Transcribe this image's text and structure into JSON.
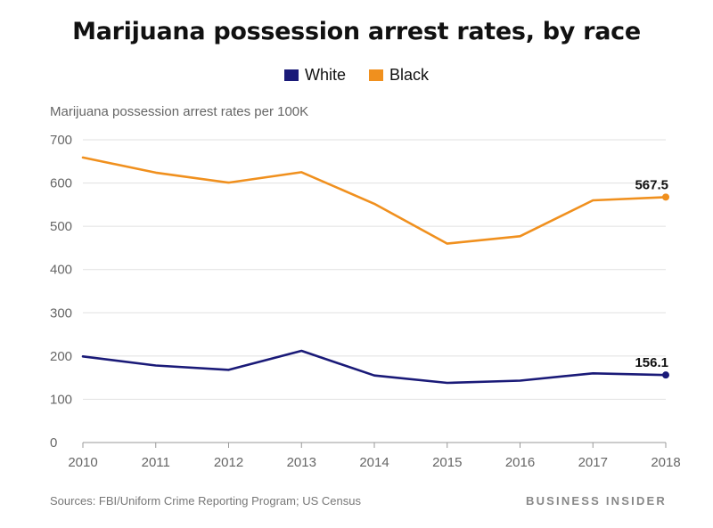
{
  "chart_data": {
    "type": "line",
    "title": "Marijuana possession arrest rates, by race",
    "ylabel": "Marijuana possession arrest rates per 100K",
    "xlabel": "",
    "x": [
      "2010",
      "2011",
      "2012",
      "2013",
      "2014",
      "2015",
      "2016",
      "2017",
      "2018"
    ],
    "ylim": [
      0,
      700
    ],
    "yticks": [
      0,
      100,
      200,
      300,
      400,
      500,
      600,
      700
    ],
    "grid": true,
    "legend_position": "top-center",
    "series": [
      {
        "name": "White",
        "color": "#1a1a78",
        "values": [
          199,
          178,
          168,
          212,
          155,
          138,
          143,
          160,
          156.1
        ],
        "end_label": "156.1"
      },
      {
        "name": "Black",
        "color": "#f0901e",
        "values": [
          659,
          624,
          601,
          625,
          552,
          460,
          477,
          560,
          567.5
        ],
        "end_label": "567.5"
      }
    ]
  },
  "footer": {
    "source": "Sources: FBI/Uniform Crime Reporting Program; US Census",
    "brand": "BUSINESS INSIDER"
  }
}
